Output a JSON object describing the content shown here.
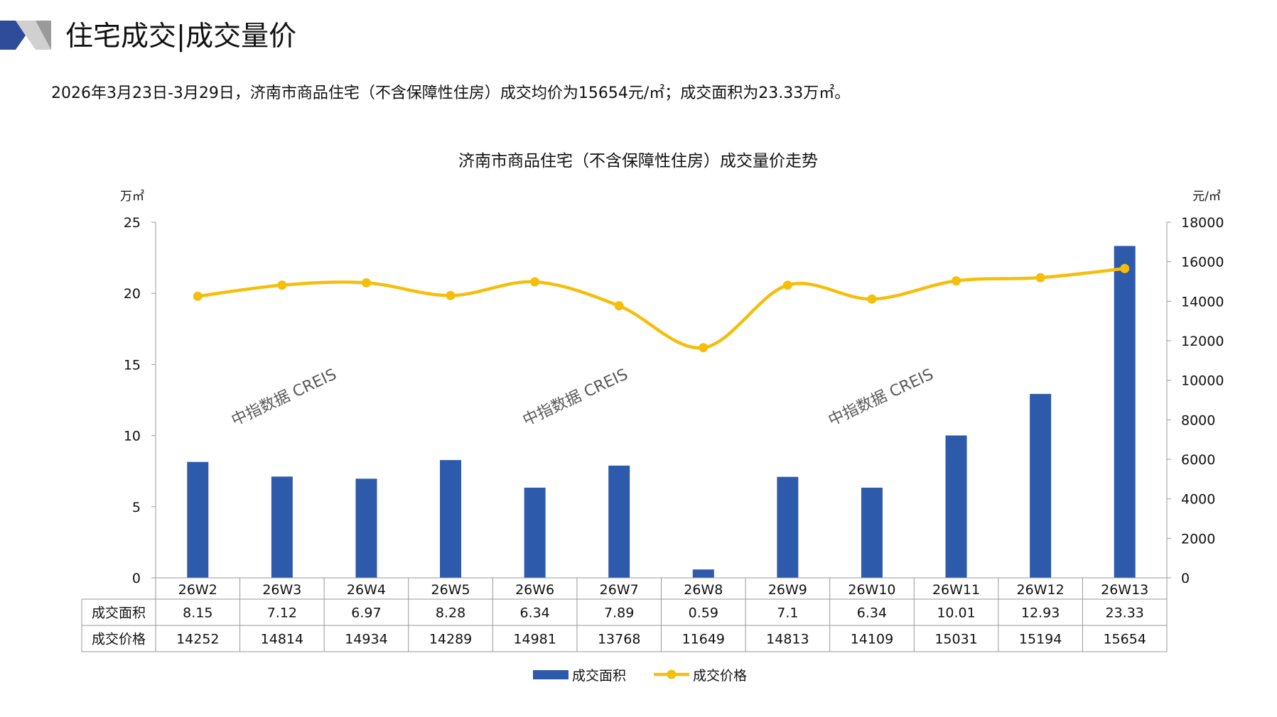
{
  "header": {
    "title": "住宅成交|成交量价",
    "summary": "2026年3月23日-3月29日，济南市商品住宅（不含保障性住房）成交均价为15654元/㎡；成交面积为23.33万㎡。"
  },
  "watermark": "中指数据 CREIS",
  "colors": {
    "bar": "#2E5AAC",
    "line": "#F5BE0B",
    "accent_dark": "#2E4C9A",
    "accent_gray": "#A6A6A6"
  },
  "chart_data": {
    "type": "bar+line",
    "title": "济南市商品住宅（不含保障性住房）成交量价走势",
    "categories": [
      "26W2",
      "26W3",
      "26W4",
      "26W5",
      "26W6",
      "26W7",
      "26W8",
      "26W9",
      "26W10",
      "26W11",
      "26W12",
      "26W13"
    ],
    "y_left": {
      "unit": "万㎡",
      "range": [
        0,
        25
      ],
      "ticks": [
        "0",
        "5",
        "10",
        "15",
        "20",
        "25"
      ]
    },
    "y_right": {
      "unit": "元/㎡",
      "range": [
        0,
        18000
      ],
      "ticks": [
        "0",
        "2000",
        "4000",
        "6000",
        "8000",
        "10000",
        "12000",
        "14000",
        "16000",
        "18000"
      ]
    },
    "series": [
      {
        "name": "成交面积",
        "type": "bar",
        "axis": "left",
        "values": [
          8.15,
          7.12,
          6.97,
          8.28,
          6.34,
          7.89,
          0.59,
          7.1,
          6.34,
          10.01,
          12.93,
          23.33
        ],
        "labels": [
          "8.15",
          "7.12",
          "6.97",
          "8.28",
          "6.34",
          "7.89",
          "0.59",
          "7.1",
          "6.34",
          "10.01",
          "12.93",
          "23.33"
        ]
      },
      {
        "name": "成交价格",
        "type": "line",
        "axis": "right",
        "values": [
          14252,
          14814,
          14934,
          14289,
          14981,
          13768,
          11649,
          14813,
          14109,
          15031,
          15194,
          15654
        ],
        "labels": [
          "14252",
          "14814",
          "14934",
          "14289",
          "14981",
          "13768",
          "11649",
          "14813",
          "14109",
          "15031",
          "15194",
          "15654"
        ]
      }
    ],
    "legend": "bottom",
    "grid": false
  }
}
